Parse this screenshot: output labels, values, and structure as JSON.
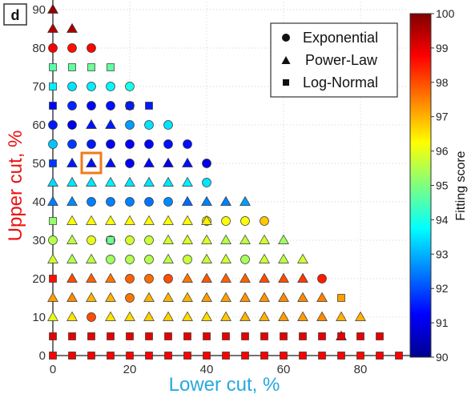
{
  "chart_data": {
    "type": "scatter",
    "panel_label": "d",
    "xlabel": "Lower cut, %",
    "ylabel": "Upper cut, %",
    "colorbar_label": "Fitting score",
    "xlim": [
      0,
      92
    ],
    "ylim": [
      0,
      92
    ],
    "xticks": [
      "0",
      "20",
      "40",
      "60",
      "80"
    ],
    "yticks": [
      "0",
      "10",
      "20",
      "30",
      "40",
      "50",
      "60",
      "70",
      "80",
      "90"
    ],
    "colorbar_range": [
      90,
      100
    ],
    "colorbar_ticks": [
      "90",
      "91",
      "92",
      "93",
      "94",
      "95",
      "96",
      "97",
      "98",
      "99",
      "100"
    ],
    "colormap": "jet",
    "legend": {
      "position": "top-right",
      "entries": [
        {
          "shape": "circle",
          "label": "Exponential"
        },
        {
          "shape": "triangle",
          "label": "Power-Law"
        },
        {
          "shape": "square",
          "label": "Log-Normal"
        }
      ]
    },
    "highlight": {
      "x": 10,
      "y": 50,
      "color": "#f07a1a"
    },
    "series": [
      {
        "name": "Exponential",
        "shape": "circle",
        "points": [
          [
            0,
            30,
            95.5
          ],
          [
            0,
            55,
            93.2
          ],
          [
            0,
            60,
            91.5
          ],
          [
            0,
            80,
            98.8
          ],
          [
            5,
            55,
            91.8
          ],
          [
            5,
            60,
            91.0
          ],
          [
            5,
            65,
            91.6
          ],
          [
            5,
            70,
            93.5
          ],
          [
            5,
            80,
            98.6
          ],
          [
            10,
            10,
            98.0
          ],
          [
            10,
            30,
            96.0
          ],
          [
            10,
            40,
            92.5
          ],
          [
            10,
            55,
            91.5
          ],
          [
            10,
            65,
            91.3
          ],
          [
            10,
            70,
            93.6
          ],
          [
            10,
            80,
            98.7
          ],
          [
            15,
            25,
            95.3
          ],
          [
            15,
            30,
            95.8
          ],
          [
            15,
            40,
            92.5
          ],
          [
            15,
            55,
            91.2
          ],
          [
            15,
            65,
            91.4
          ],
          [
            15,
            70,
            93.7
          ],
          [
            20,
            15,
            97.6
          ],
          [
            20,
            20,
            97.8
          ],
          [
            20,
            25,
            95.5
          ],
          [
            20,
            30,
            95.8
          ],
          [
            20,
            40,
            92.5
          ],
          [
            20,
            50,
            91.2
          ],
          [
            20,
            55,
            91.2
          ],
          [
            20,
            60,
            92.8
          ],
          [
            20,
            65,
            91.5
          ],
          [
            20,
            70,
            94.0
          ],
          [
            25,
            20,
            97.7
          ],
          [
            25,
            25,
            95.5
          ],
          [
            25,
            30,
            95.7
          ],
          [
            25,
            40,
            92.4
          ],
          [
            25,
            55,
            91.3
          ],
          [
            25,
            60,
            93.5
          ],
          [
            30,
            20,
            98.0
          ],
          [
            30,
            40,
            92.6
          ],
          [
            30,
            55,
            91.4
          ],
          [
            30,
            60,
            93.5
          ],
          [
            35,
            55,
            91.4
          ],
          [
            35,
            25,
            95.7
          ],
          [
            40,
            50,
            91.0
          ],
          [
            40,
            45,
            93.5
          ],
          [
            40,
            35,
            96.0
          ],
          [
            45,
            35,
            96.2
          ],
          [
            50,
            25,
            95.4
          ],
          [
            50,
            35,
            96.2
          ],
          [
            55,
            35,
            96.8
          ],
          [
            70,
            20,
            98.5
          ]
        ]
      },
      {
        "name": "Power-Law",
        "shape": "triangle",
        "points": [
          [
            0,
            10,
            96.0
          ],
          [
            0,
            15,
            97.2
          ],
          [
            0,
            25,
            95.8
          ],
          [
            0,
            40,
            92.5
          ],
          [
            0,
            45,
            93.4
          ],
          [
            0,
            85,
            99.5
          ],
          [
            0,
            90,
            99.8
          ],
          [
            5,
            10,
            96.5
          ],
          [
            5,
            15,
            97.4
          ],
          [
            5,
            20,
            98.0
          ],
          [
            5,
            25,
            95.5
          ],
          [
            5,
            30,
            95.6
          ],
          [
            5,
            35,
            96.2
          ],
          [
            5,
            40,
            92.6
          ],
          [
            5,
            45,
            93.5
          ],
          [
            5,
            50,
            91.5
          ],
          [
            5,
            85,
            99.6
          ],
          [
            10,
            15,
            97.0
          ],
          [
            10,
            20,
            97.8
          ],
          [
            10,
            25,
            95.6
          ],
          [
            10,
            35,
            96.3
          ],
          [
            10,
            45,
            93.5
          ],
          [
            10,
            50,
            91.4
          ],
          [
            10,
            60,
            91.4
          ],
          [
            15,
            10,
            96.5
          ],
          [
            15,
            15,
            97.0
          ],
          [
            15,
            20,
            97.6
          ],
          [
            15,
            35,
            96.2
          ],
          [
            15,
            45,
            93.6
          ],
          [
            15,
            50,
            91.4
          ],
          [
            15,
            60,
            91.5
          ],
          [
            20,
            10,
            96.6
          ],
          [
            20,
            35,
            96.3
          ],
          [
            20,
            45,
            93.5
          ],
          [
            25,
            10,
            96.7
          ],
          [
            25,
            15,
            97.0
          ],
          [
            25,
            35,
            96.3
          ],
          [
            25,
            45,
            93.5
          ],
          [
            25,
            50,
            91.3
          ],
          [
            30,
            10,
            96.7
          ],
          [
            30,
            15,
            97.0
          ],
          [
            30,
            25,
            95.6
          ],
          [
            30,
            30,
            95.8
          ],
          [
            30,
            35,
            96.2
          ],
          [
            30,
            45,
            93.5
          ],
          [
            30,
            50,
            91.0
          ],
          [
            35,
            10,
            96.6
          ],
          [
            35,
            15,
            97.0
          ],
          [
            35,
            20,
            97.6
          ],
          [
            35,
            30,
            95.9
          ],
          [
            35,
            35,
            96.3
          ],
          [
            35,
            40,
            92.3
          ],
          [
            35,
            45,
            93.6
          ],
          [
            35,
            50,
            91.4
          ],
          [
            40,
            10,
            96.6
          ],
          [
            40,
            15,
            97.2
          ],
          [
            40,
            20,
            97.9
          ],
          [
            40,
            25,
            95.7
          ],
          [
            40,
            30,
            95.9
          ],
          [
            40,
            35,
            96.4
          ],
          [
            40,
            40,
            92.5
          ],
          [
            45,
            10,
            96.8
          ],
          [
            45,
            15,
            97.2
          ],
          [
            45,
            20,
            97.8
          ],
          [
            45,
            25,
            95.8
          ],
          [
            45,
            30,
            95.5
          ],
          [
            45,
            40,
            92.5
          ],
          [
            50,
            10,
            97.0
          ],
          [
            50,
            15,
            97.3
          ],
          [
            50,
            20,
            97.8
          ],
          [
            50,
            30,
            95.6
          ],
          [
            50,
            40,
            92.8
          ],
          [
            55,
            10,
            97.0
          ],
          [
            55,
            15,
            97.3
          ],
          [
            55,
            20,
            98.0
          ],
          [
            55,
            25,
            95.8
          ],
          [
            55,
            30,
            95.8
          ],
          [
            60,
            10,
            97.2
          ],
          [
            60,
            15,
            97.4
          ],
          [
            60,
            20,
            98.0
          ],
          [
            60,
            25,
            95.6
          ],
          [
            60,
            30,
            95.3
          ],
          [
            65,
            10,
            97.2
          ],
          [
            65,
            15,
            97.4
          ],
          [
            65,
            20,
            98.2
          ],
          [
            65,
            25,
            95.8
          ],
          [
            70,
            10,
            97.4
          ],
          [
            70,
            15,
            97.5
          ],
          [
            75,
            5,
            98.8
          ],
          [
            75,
            10,
            97.0
          ],
          [
            80,
            10,
            97.0
          ]
        ]
      },
      {
        "name": "Log-Normal",
        "shape": "square",
        "points": [
          [
            0,
            0,
            98.8
          ],
          [
            0,
            5,
            99.0
          ],
          [
            0,
            20,
            98.6
          ],
          [
            0,
            35,
            95.2
          ],
          [
            0,
            50,
            91.8
          ],
          [
            0,
            65,
            91.2
          ],
          [
            0,
            70,
            93.6
          ],
          [
            0,
            75,
            94.6
          ],
          [
            5,
            0,
            98.9
          ],
          [
            5,
            5,
            99.0
          ],
          [
            5,
            75,
            94.7
          ],
          [
            10,
            0,
            98.9
          ],
          [
            10,
            5,
            99.0
          ],
          [
            10,
            75,
            94.8
          ],
          [
            15,
            0,
            98.8
          ],
          [
            15,
            5,
            99.0
          ],
          [
            15,
            30,
            94.8
          ],
          [
            15,
            75,
            94.7
          ],
          [
            20,
            0,
            98.8
          ],
          [
            20,
            5,
            99.0
          ],
          [
            20,
            65,
            91.5
          ],
          [
            25,
            0,
            98.8
          ],
          [
            25,
            5,
            99.0
          ],
          [
            25,
            65,
            91.5
          ],
          [
            30,
            0,
            98.8
          ],
          [
            30,
            5,
            99.0
          ],
          [
            35,
            0,
            98.8
          ],
          [
            35,
            5,
            99.0
          ],
          [
            40,
            0,
            98.8
          ],
          [
            40,
            5,
            99.0
          ],
          [
            45,
            0,
            98.8
          ],
          [
            45,
            5,
            99.0
          ],
          [
            50,
            0,
            98.8
          ],
          [
            50,
            5,
            99.0
          ],
          [
            55,
            0,
            98.8
          ],
          [
            55,
            5,
            99.0
          ],
          [
            60,
            0,
            98.8
          ],
          [
            60,
            5,
            99.0
          ],
          [
            65,
            0,
            98.8
          ],
          [
            65,
            5,
            99.0
          ],
          [
            70,
            0,
            98.8
          ],
          [
            70,
            5,
            99.0
          ],
          [
            75,
            0,
            98.8
          ],
          [
            75,
            5,
            99.0
          ],
          [
            75,
            15,
            97.2
          ],
          [
            80,
            0,
            98.7
          ],
          [
            80,
            5,
            99.0
          ],
          [
            85,
            0,
            98.8
          ],
          [
            85,
            5,
            99.0
          ],
          [
            90,
            0,
            98.8
          ]
        ]
      }
    ]
  }
}
